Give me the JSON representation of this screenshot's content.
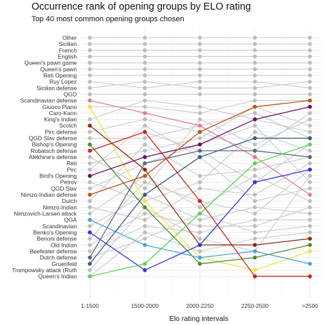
{
  "chart_data": {
    "type": "line",
    "title": "Occurrence rank of opening groups by ELO rating",
    "subtitle": "Top 40 most common opening groups chosen",
    "xlabel": "Elo rating intervals",
    "ylabel": "",
    "grid": true,
    "x": [
      "1-1500",
      "1500-2000",
      "2000-2250",
      "2250-2500",
      ">2500"
    ],
    "rank_labels": [
      "Other",
      "Sicilian",
      "French",
      "English",
      "Queen's pawn game",
      "Queen's pawn",
      "Reti Opening",
      "Ruy Lopez",
      "Sicilian defense",
      "QGD",
      "Scandinavian defense",
      "Giuoco Piano",
      "Caro-Kann",
      "King's Indian",
      "Scotch",
      "Pirc defense",
      "QGD Slav defense",
      "Bishop's Opening",
      "Robatsch defense",
      "Alekhine's defense",
      "Reti",
      "Pirc",
      "Bird's Opening",
      "Petrov",
      "QGD Slav",
      "Nimzo-Indian defense",
      "Dutch",
      "Nimzo-Indian",
      "Nimzovich-Larsen attack",
      "QGA",
      "Scandinavian",
      "Benko's Opening",
      "Benoni defense",
      "Old Indian",
      "Beefeater defense",
      "Dutch defense",
      "Gruenfeld",
      "Trompowsky attack (Ruth",
      "Queen's Indian"
    ],
    "colors": {
      "gray_line": "#c9c9c9",
      "gray_point": "#bdbdbd",
      "panel_background": "#ffffff",
      "grid_major": "#e6e6e6",
      "grid_minor": "#f3f3f3"
    },
    "gray_series": [
      [
        1,
        1,
        1,
        1,
        1
      ],
      [
        2,
        2,
        2,
        2,
        2
      ],
      [
        3,
        3,
        3,
        3,
        3
      ],
      [
        4,
        4,
        4,
        4,
        4
      ],
      [
        5,
        5,
        5,
        5,
        5
      ],
      [
        6,
        6,
        6,
        6,
        6
      ],
      [
        7,
        7,
        7,
        7,
        7
      ],
      [
        8,
        9,
        8,
        8,
        9
      ],
      [
        9,
        8,
        9,
        9,
        8
      ],
      [
        10,
        10,
        10,
        10,
        10
      ],
      [
        12,
        12,
        13,
        11,
        11
      ],
      [
        14,
        11,
        12,
        14,
        16
      ],
      [
        16,
        14,
        16,
        19,
        13
      ],
      [
        17,
        17,
        15,
        13,
        17
      ],
      [
        19,
        16,
        19,
        24,
        18
      ],
      [
        20,
        25,
        14,
        18,
        14
      ],
      [
        21,
        19,
        17,
        12,
        15
      ],
      [
        22,
        15,
        20,
        27,
        25
      ],
      [
        24,
        27,
        24,
        16,
        19
      ],
      [
        25,
        21,
        18,
        15,
        24
      ],
      [
        27,
        18,
        23,
        22,
        20
      ],
      [
        28,
        30,
        25,
        26,
        21
      ],
      [
        29,
        23,
        28,
        23,
        27
      ],
      [
        31,
        26,
        30,
        28,
        29
      ],
      [
        33,
        24,
        27,
        29,
        22
      ],
      [
        34,
        29,
        31,
        31,
        28
      ],
      [
        35,
        31,
        32,
        30,
        30
      ],
      [
        36,
        33,
        29,
        32,
        31
      ],
      [
        38,
        28,
        33,
        35,
        23
      ],
      [
        39,
        32,
        35,
        33,
        32
      ]
    ],
    "series": [
      {
        "color": "#e07b91",
        "values": [
          11,
          13,
          15,
          20,
          26
        ]
      },
      {
        "color": "#f0e442",
        "values": [
          12,
          27,
          36,
          38,
          35
        ]
      },
      {
        "color": "#8b2a0f",
        "values": [
          15,
          22,
          34,
          34,
          33
        ]
      },
      {
        "color": "#4c8a30",
        "values": [
          18,
          28,
          37,
          36,
          34
        ]
      },
      {
        "color": "#6a0f6a",
        "values": [
          23,
          20,
          18,
          14,
          12
        ]
      },
      {
        "color": "#c0511a",
        "values": [
          26,
          23,
          16,
          12,
          11
        ]
      },
      {
        "color": "#4aa3d6",
        "values": [
          30,
          34,
          36,
          35,
          37
        ]
      },
      {
        "color": "#3535d8",
        "values": [
          32,
          38,
          34,
          24,
          22
        ]
      },
      {
        "color": "#3d5a80",
        "values": [
          37,
          26,
          20,
          17,
          17
        ]
      },
      {
        "color": "#5c6b7a",
        "values": [
          36,
          21,
          19,
          19,
          20
        ]
      },
      {
        "color": "#55d455",
        "values": [
          39,
          37,
          29,
          21,
          18
        ]
      },
      {
        "color": "#d21f1f",
        "values": [
          19,
          16,
          27,
          39,
          39
        ]
      }
    ]
  }
}
